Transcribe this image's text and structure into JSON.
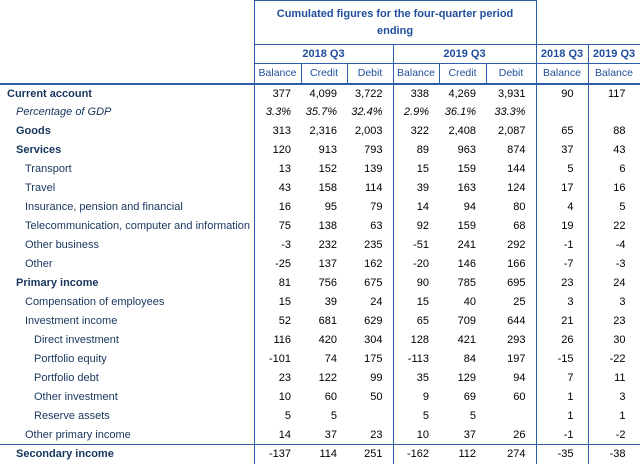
{
  "header": {
    "group_title": "Cumulated figures for the four-quarter period ending",
    "period_groups": [
      "2018 Q3",
      "2019 Q3"
    ],
    "quarter_columns": [
      "2018 Q3",
      "2019 Q3"
    ],
    "subheaders": [
      "Balance",
      "Credit",
      "Debit",
      "Balance",
      "Credit",
      "Debit",
      "Balance",
      "Balance"
    ]
  },
  "colors": {
    "border": "#2e5ea8",
    "header_text": "#1f4e9c",
    "label_text": "#17365d"
  },
  "chart_data": {
    "type": "table",
    "title": "Cumulated figures for the four-quarter period ending",
    "columns": [
      "Item",
      "2018 Q3 Balance",
      "2018 Q3 Credit",
      "2018 Q3 Debit",
      "2019 Q3 Balance",
      "2019 Q3 Credit",
      "2019 Q3 Debit",
      "2018 Q3 Balance",
      "2019 Q3 Balance"
    ],
    "rows": [
      {
        "label": "Current account",
        "bold": true,
        "indent": 0,
        "values": [
          "377",
          "4,099",
          "3,722",
          "338",
          "4,269",
          "3,931",
          "90",
          "117"
        ]
      },
      {
        "label": "Percentage of GDP",
        "italic": true,
        "indent": 1,
        "values": [
          "3.3%",
          "35.7%",
          "32.4%",
          "2.9%",
          "36.1%",
          "33.3%",
          "",
          ""
        ]
      },
      {
        "label": "Goods",
        "bold": true,
        "indent": 1,
        "values": [
          "313",
          "2,316",
          "2,003",
          "322",
          "2,408",
          "2,087",
          "65",
          "88"
        ]
      },
      {
        "label": "Services",
        "bold": true,
        "indent": 1,
        "values": [
          "120",
          "913",
          "793",
          "89",
          "963",
          "874",
          "37",
          "43"
        ]
      },
      {
        "label": "Transport",
        "indent": 2,
        "values": [
          "13",
          "152",
          "139",
          "15",
          "159",
          "144",
          "5",
          "6"
        ]
      },
      {
        "label": "Travel",
        "indent": 2,
        "values": [
          "43",
          "158",
          "114",
          "39",
          "163",
          "124",
          "17",
          "16"
        ]
      },
      {
        "label": "Insurance, pension and financial",
        "indent": 2,
        "values": [
          "16",
          "95",
          "79",
          "14",
          "94",
          "80",
          "4",
          "5"
        ]
      },
      {
        "label": "Telecommunication, computer and information",
        "indent": 2,
        "values": [
          "75",
          "138",
          "63",
          "92",
          "159",
          "68",
          "19",
          "22"
        ]
      },
      {
        "label": "Other business",
        "indent": 2,
        "values": [
          "-3",
          "232",
          "235",
          "-51",
          "241",
          "292",
          "-1",
          "-4"
        ]
      },
      {
        "label": "Other",
        "indent": 2,
        "values": [
          "-25",
          "137",
          "162",
          "-20",
          "146",
          "166",
          "-7",
          "-3"
        ]
      },
      {
        "label": "Primary income",
        "bold": true,
        "indent": 1,
        "values": [
          "81",
          "756",
          "675",
          "90",
          "785",
          "695",
          "23",
          "24"
        ]
      },
      {
        "label": "Compensation of employees",
        "indent": 2,
        "values": [
          "15",
          "39",
          "24",
          "15",
          "40",
          "25",
          "3",
          "3"
        ]
      },
      {
        "label": "Investment income",
        "indent": 2,
        "values": [
          "52",
          "681",
          "629",
          "65",
          "709",
          "644",
          "21",
          "23"
        ]
      },
      {
        "label": "Direct investment",
        "indent": 3,
        "values": [
          "116",
          "420",
          "304",
          "128",
          "421",
          "293",
          "26",
          "30"
        ]
      },
      {
        "label": "Portfolio equity",
        "indent": 3,
        "values": [
          "-101",
          "74",
          "175",
          "-113",
          "84",
          "197",
          "-15",
          "-22"
        ]
      },
      {
        "label": "Portfolio debt",
        "indent": 3,
        "values": [
          "23",
          "122",
          "99",
          "35",
          "129",
          "94",
          "7",
          "11"
        ]
      },
      {
        "label": "Other investment",
        "indent": 3,
        "values": [
          "10",
          "60",
          "50",
          "9",
          "69",
          "60",
          "1",
          "3"
        ]
      },
      {
        "label": "Reserve assets",
        "indent": 3,
        "values": [
          "5",
          "5",
          "",
          "5",
          "5",
          "",
          "1",
          "1"
        ]
      },
      {
        "label": "Other primary income",
        "indent": 2,
        "values": [
          "14",
          "37",
          "23",
          "10",
          "37",
          "26",
          "-1",
          "-2"
        ]
      },
      {
        "label": "Secondary income",
        "bold": true,
        "indent": 1,
        "sep_top": true,
        "values": [
          "-137",
          "114",
          "251",
          "-162",
          "112",
          "274",
          "-35",
          "-38"
        ]
      }
    ]
  }
}
